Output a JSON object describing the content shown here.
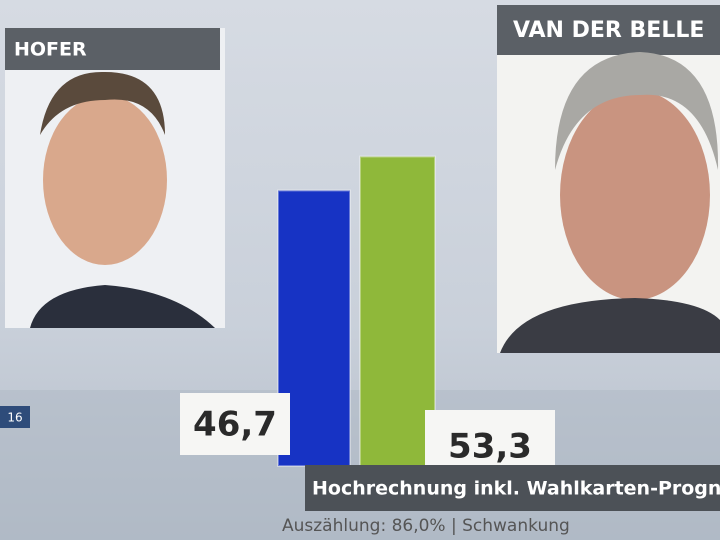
{
  "chart_data": {
    "type": "bar",
    "categories": [
      "HOFER",
      "VAN DER BELLE"
    ],
    "values": [
      46.7,
      53.3
    ],
    "value_labels": [
      "46,7",
      "53,3"
    ],
    "colors": [
      "#1733c4",
      "#8fb83a"
    ],
    "subtitle": "Hochrechnung inkl. Wahlkarten-Prognose Öste",
    "note": "Auszählung: 86,0% | Schwankung",
    "logo_text": "16"
  }
}
